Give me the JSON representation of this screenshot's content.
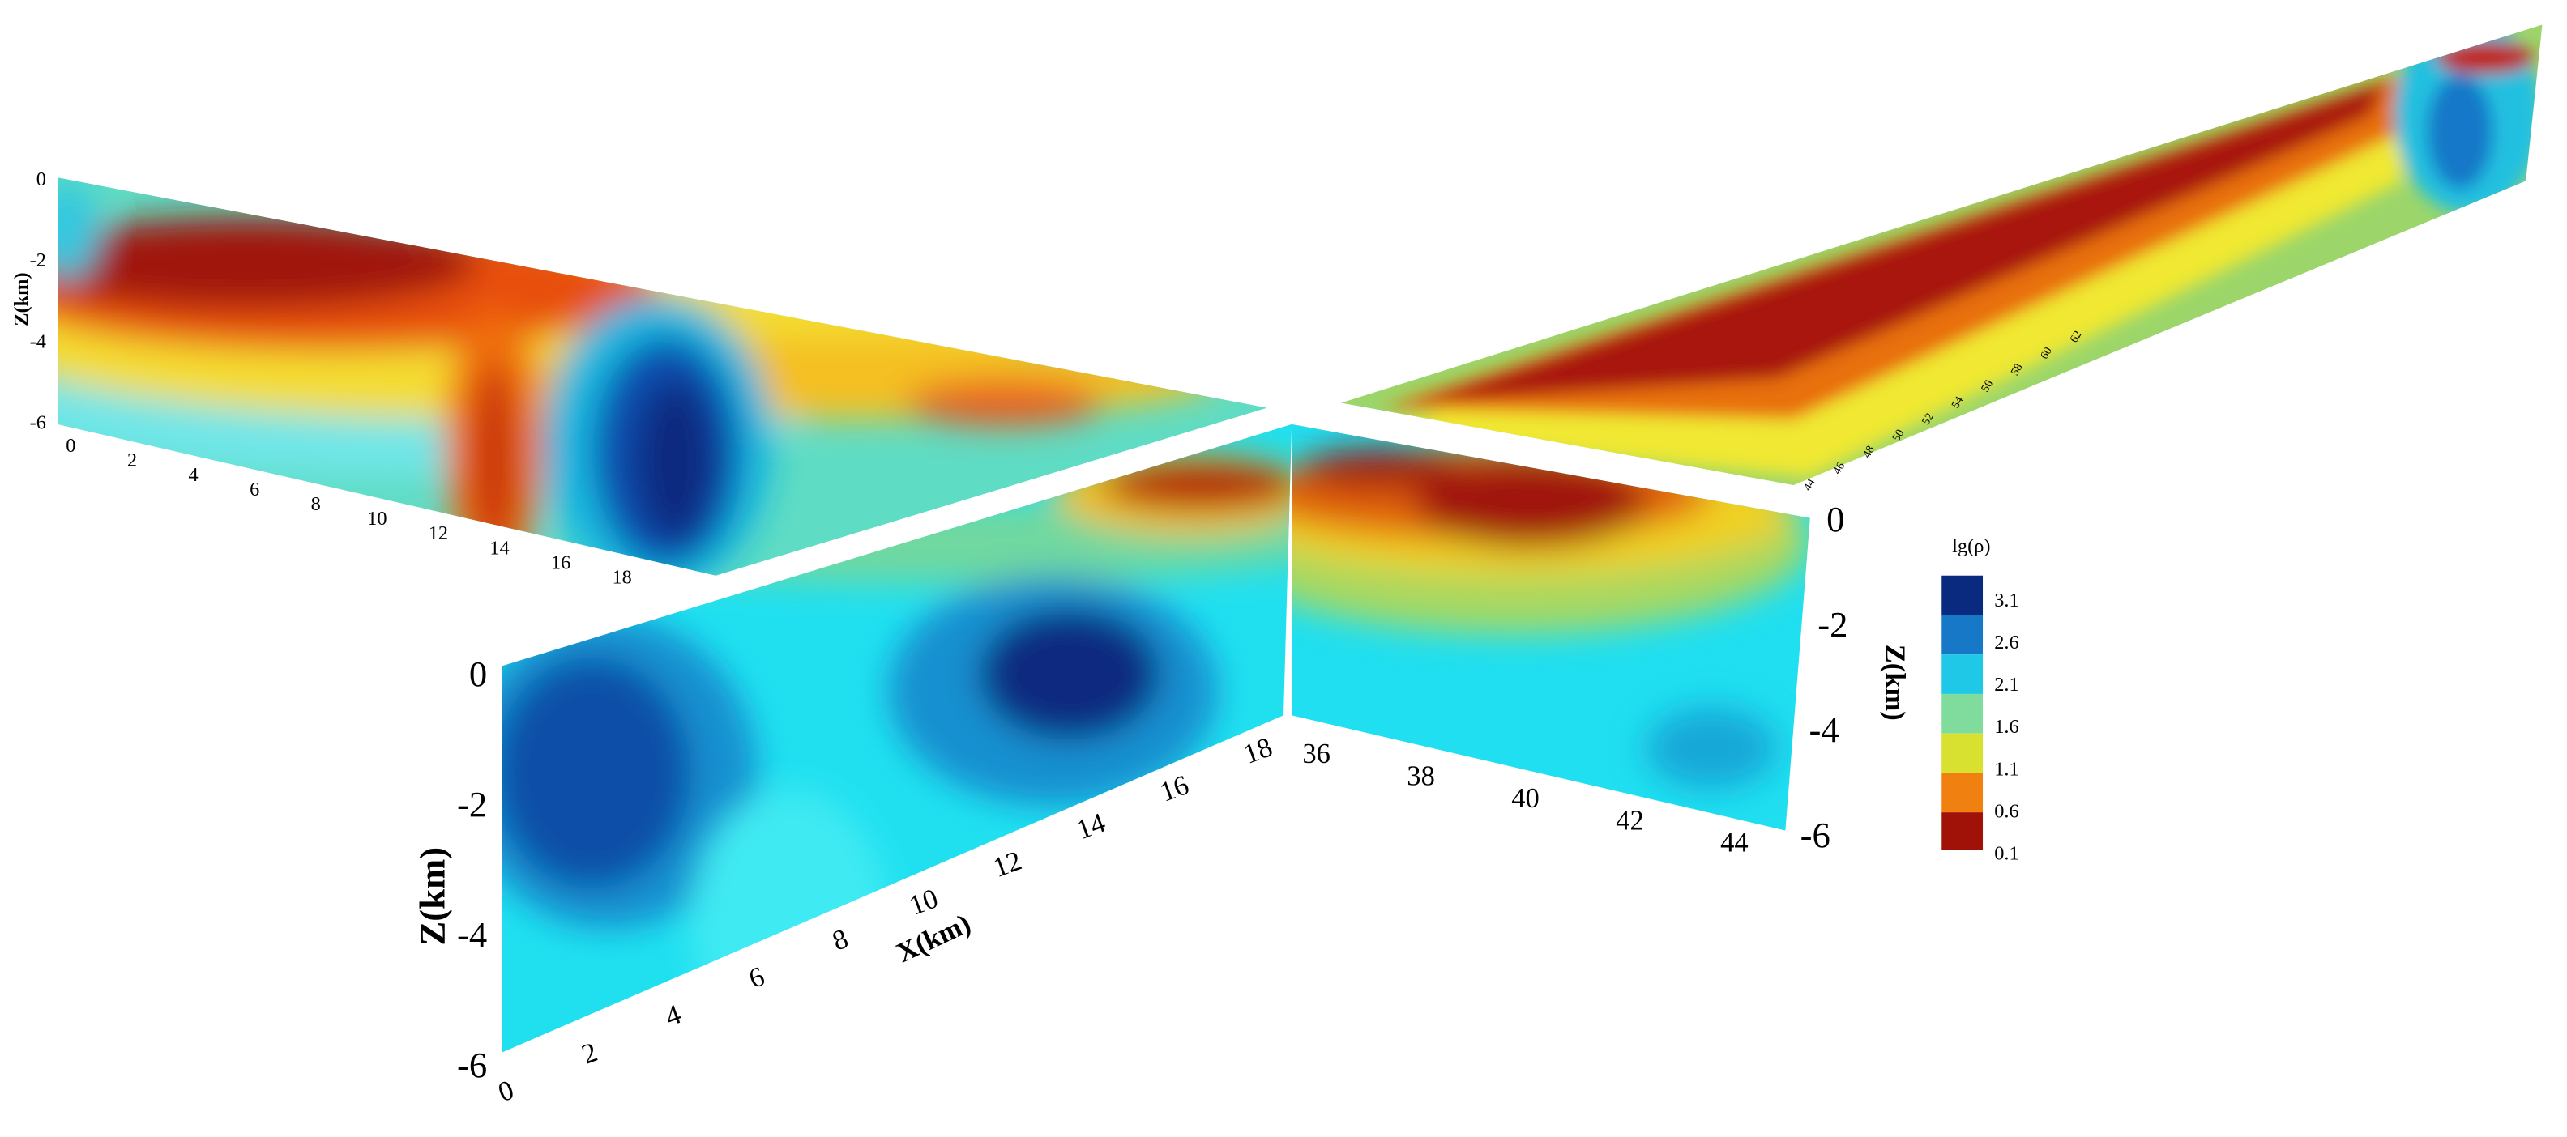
{
  "back_left": {
    "z_label": "Z(km)",
    "z_ticks": [
      0,
      -2,
      -4,
      -6
    ],
    "x_ticks": [
      0,
      2,
      4,
      6,
      8,
      10,
      12,
      14,
      16,
      18
    ]
  },
  "back_right": {
    "x_ticks": [
      44,
      46,
      48,
      50,
      52,
      54,
      56,
      58,
      60,
      62
    ]
  },
  "front_left": {
    "z_label": "Z(km)",
    "z_ticks": [
      0,
      -2,
      -4,
      -6
    ],
    "x_label": "X(km)",
    "x_ticks": [
      0,
      2,
      4,
      6,
      8,
      10,
      12,
      14,
      16,
      18
    ]
  },
  "front_right": {
    "z_label": "Z(km)",
    "z_ticks": [
      0,
      -2,
      -4,
      -6
    ],
    "x_ticks": [
      36,
      38,
      40,
      42,
      44
    ]
  },
  "colorbar": {
    "title": "lg(ρ)",
    "ticks": [
      3.1,
      2.6,
      2.1,
      1.6,
      1.1,
      0.6,
      0.1
    ]
  }
}
